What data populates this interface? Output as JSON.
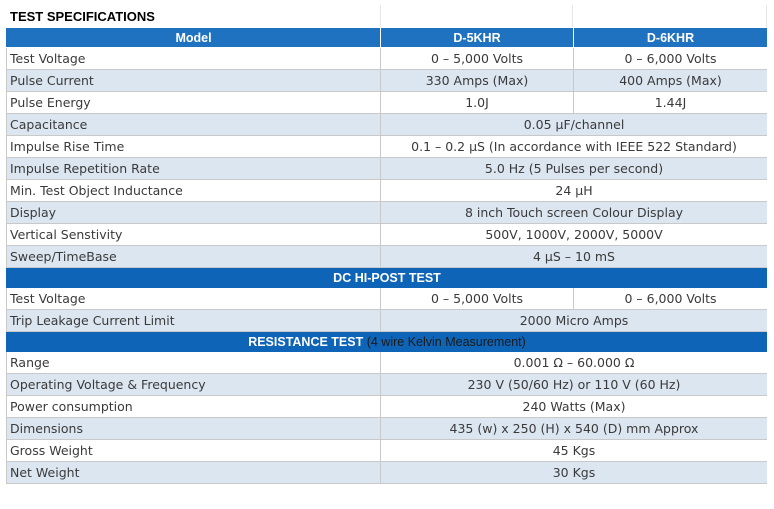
{
  "title": "TEST SPECIFICATIONS",
  "header": {
    "model_label": "Model",
    "col1": "D-5KHR",
    "col2": "D-6KHR"
  },
  "section1": [
    {
      "label": "Test Voltage",
      "v1": "0 – 5,000 Volts",
      "v2": "0 – 6,000 Volts"
    },
    {
      "label": "Pulse Current",
      "v1": "330 Amps (Max)",
      "v2": "400 Amps (Max)"
    },
    {
      "label": "Pulse Energy",
      "v1": "1.0J",
      "v2": "1.44J"
    },
    {
      "label": "Capacitance",
      "value": "0.05 μF/channel"
    },
    {
      "label": "Impulse Rise Time",
      "value": "0.1 – 0.2 μS (In accordance with IEEE 522 Standard)"
    },
    {
      "label": "Impulse Repetition Rate",
      "value": "5.0 Hz (5 Pulses per second)"
    },
    {
      "label": "Min. Test Object Inductance",
      "value": "24 μH"
    },
    {
      "label": "Display",
      "value": "8 inch Touch screen Colour Display"
    },
    {
      "label": "Vertical Senstivity",
      "value": "500V, 1000V, 2000V, 5000V"
    },
    {
      "label": "Sweep/TimeBase",
      "value": "4 μS – 10 mS"
    }
  ],
  "section2": {
    "title": "DC HI-POST TEST",
    "rows": [
      {
        "label": "Test Voltage",
        "v1": "0 – 5,000 Volts",
        "v2": "0 – 6,000 Volts"
      },
      {
        "label": "Trip Leakage Current Limit",
        "value": "2000 Micro Amps"
      }
    ]
  },
  "section3": {
    "title": "RESISTANCE TEST",
    "note": " (4 wire Kelvin Measurement)",
    "rows": [
      {
        "label": "Range",
        "value": "0.001 Ω – 60.000 Ω"
      },
      {
        "label": "Operating Voltage & Frequency",
        "value": "230 V (50/60 Hz) or 110 V (60 Hz)"
      },
      {
        "label": "Power consumption",
        "value": "240 Watts (Max)"
      },
      {
        "label": "Dimensions",
        "value": "435 (w) x 250 (H) x 540 (D) mm Approx"
      },
      {
        "label": "Gross Weight",
        "value": "45 Kgs"
      },
      {
        "label": "Net Weight",
        "value": "30 Kgs"
      }
    ]
  },
  "colors": {
    "header_blue": "#1f72c0",
    "section_blue": "#0e64b6",
    "row_alt": "#dce6f1",
    "border": "#c9c9c9"
  }
}
